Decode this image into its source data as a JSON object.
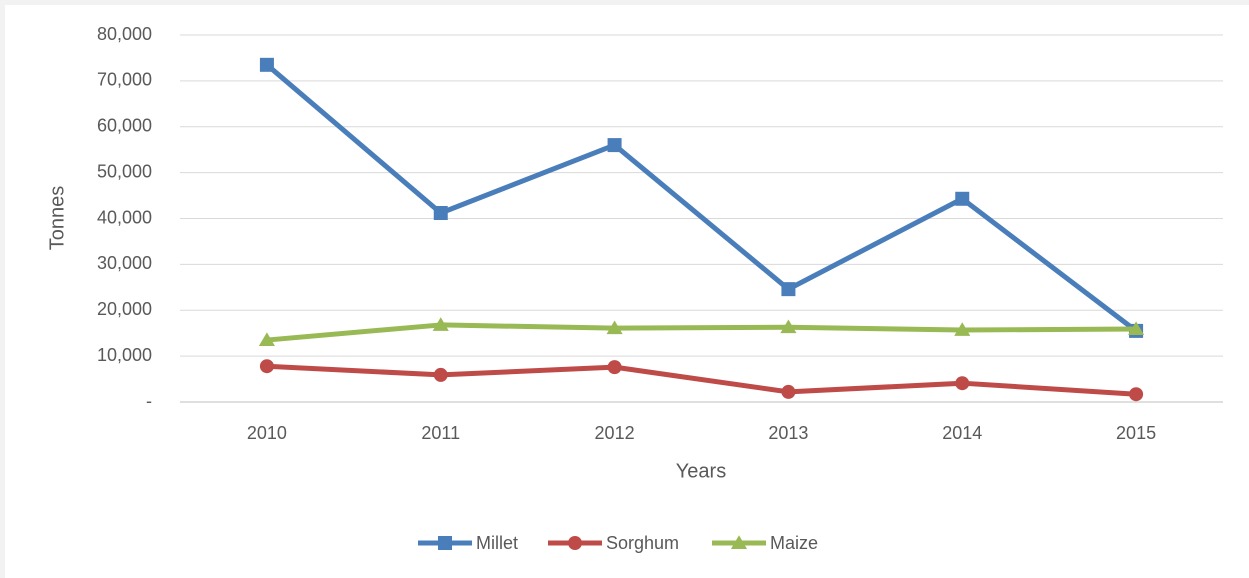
{
  "chart_data": {
    "type": "line",
    "x_label": "Years",
    "y_label": "Tonnes",
    "categories": [
      "2010",
      "2011",
      "2012",
      "2013",
      "2014",
      "2015"
    ],
    "series": [
      {
        "name": "Millet",
        "color": "#4a7ebb",
        "marker": "square",
        "values": [
          73500,
          41200,
          56000,
          24600,
          44300,
          15500
        ]
      },
      {
        "name": "Sorghum",
        "color": "#be4b48",
        "marker": "circle",
        "values": [
          7800,
          5900,
          7600,
          2200,
          4100,
          1700
        ]
      },
      {
        "name": "Maize",
        "color": "#98b954",
        "marker": "triangle",
        "values": [
          13500,
          16800,
          16100,
          16300,
          15700,
          15900
        ]
      }
    ],
    "ylim": [
      0,
      80000
    ],
    "yticks": [
      {
        "value": 0,
        "label": "-"
      },
      {
        "value": 10000,
        "label": "10,000"
      },
      {
        "value": 20000,
        "label": "20,000"
      },
      {
        "value": 30000,
        "label": "30,000"
      },
      {
        "value": 40000,
        "label": "40,000"
      },
      {
        "value": 50000,
        "label": "50,000"
      },
      {
        "value": 60000,
        "label": "60,000"
      },
      {
        "value": 70000,
        "label": "70,000"
      },
      {
        "value": 80000,
        "label": "80,000"
      }
    ],
    "grid": true,
    "legend": "bottom"
  }
}
